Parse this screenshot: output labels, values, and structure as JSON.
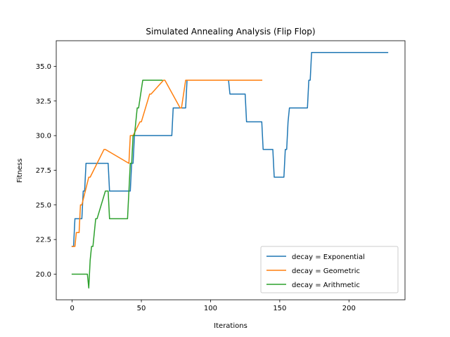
{
  "chart_data": {
    "type": "line",
    "title": "Simulated Annealing Analysis (Flip Flop)",
    "xlabel": "Iterations",
    "ylabel": "Fitness",
    "xlim": [
      -11.5,
      240.5
    ],
    "ylim": [
      18.15,
      36.85
    ],
    "xticks": [
      0,
      50,
      100,
      150,
      200
    ],
    "yticks": [
      20.0,
      22.5,
      25.0,
      27.5,
      30.0,
      32.5,
      35.0
    ],
    "ytick_labels": [
      "20.0",
      "22.5",
      "25.0",
      "27.5",
      "30.0",
      "32.5",
      "35.0"
    ],
    "grid": false,
    "legend_position": "lower right",
    "series": [
      {
        "name": "decay = Exponential",
        "color": "#1f77b4",
        "x": [
          0,
          1,
          2,
          6,
          7,
          8,
          9,
          10,
          25,
          26,
          27,
          41,
          42,
          43,
          44,
          45,
          72,
          73,
          78,
          79,
          80,
          81,
          82,
          83,
          113,
          114,
          115,
          125,
          126,
          127,
          137,
          138,
          139,
          145,
          146,
          147,
          152,
          153,
          154,
          155,
          156,
          157,
          158,
          159,
          170,
          171,
          172,
          173,
          174,
          175,
          228
        ],
        "y": [
          22,
          22,
          24,
          24,
          24,
          26,
          26,
          28,
          28,
          28,
          26,
          26,
          26,
          28,
          28,
          30,
          30,
          32,
          32,
          32,
          32,
          32,
          32,
          34,
          34,
          33,
          33,
          33,
          31,
          31,
          31,
          29,
          29,
          29,
          27,
          27,
          27,
          27,
          29,
          29,
          31,
          32,
          32,
          32,
          32,
          34,
          34,
          36,
          36,
          36,
          36
        ]
      },
      {
        "name": "decay = Geometric",
        "color": "#ff7f0e",
        "x": [
          0,
          2,
          3,
          5,
          6,
          7,
          12,
          13,
          23,
          24,
          41,
          42,
          43,
          44,
          49,
          50,
          56,
          57,
          66,
          67,
          78,
          79,
          82,
          83,
          137
        ],
        "y": [
          22,
          22,
          23,
          23,
          25,
          25,
          27,
          27,
          29,
          29,
          28,
          30,
          30,
          30,
          31,
          31,
          33,
          33,
          34,
          34,
          32,
          32,
          34,
          34,
          34
        ],
        "note": ""
      },
      {
        "name": "decay = Arithmetic",
        "color": "#2ca02c",
        "x": [
          0,
          11,
          12,
          13,
          14,
          15,
          17,
          18,
          24,
          25,
          26,
          27,
          28,
          40,
          41,
          42,
          43,
          44,
          45,
          47,
          48,
          51,
          52,
          65
        ],
        "y": [
          20,
          20,
          19,
          21,
          22,
          22,
          24,
          24,
          26,
          26,
          26,
          24,
          24,
          24,
          26,
          28,
          28,
          30,
          30,
          32,
          32,
          34,
          34,
          34
        ]
      }
    ]
  }
}
